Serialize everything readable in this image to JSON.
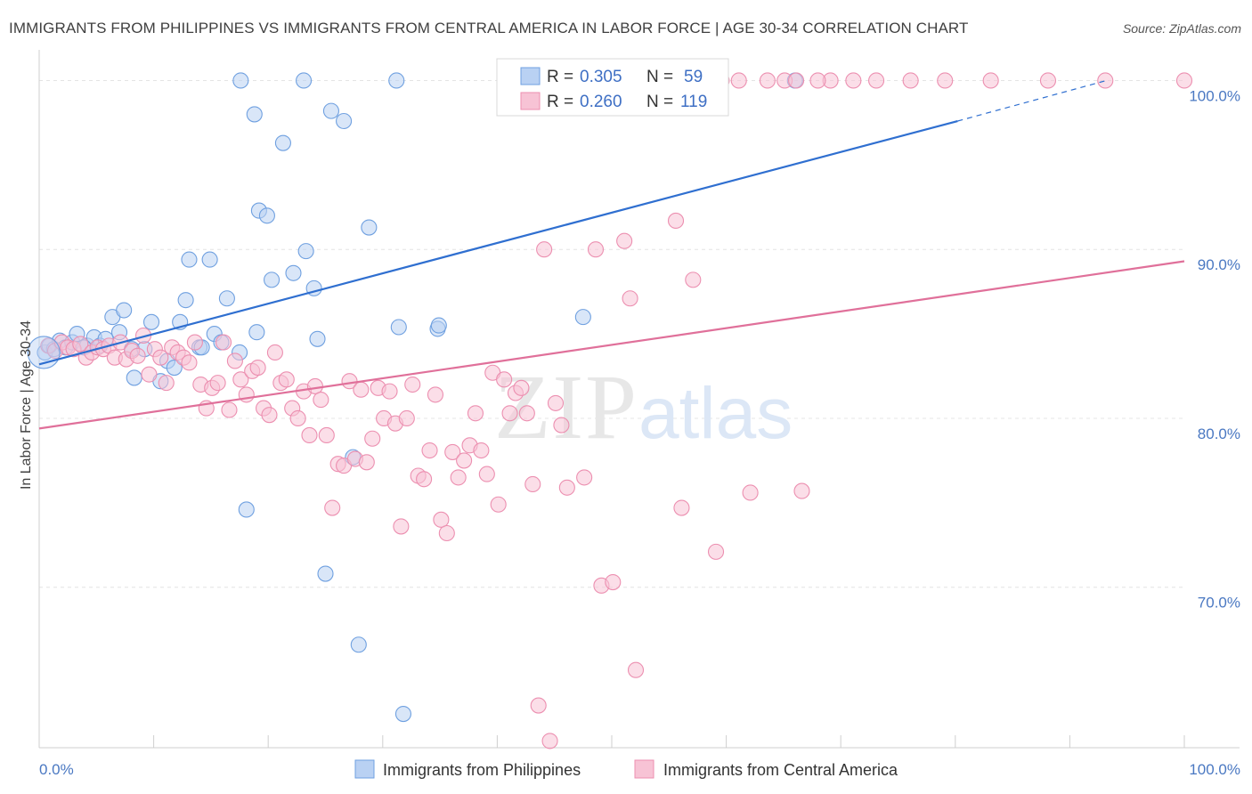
{
  "title": "IMMIGRANTS FROM PHILIPPINES VS IMMIGRANTS FROM CENTRAL AMERICA IN LABOR FORCE | AGE 30-34 CORRELATION CHART",
  "source": "Source: ZipAtlas.com",
  "watermark": {
    "zip": "ZIP",
    "atlas": "atlas"
  },
  "legend": {
    "r_label": "R =",
    "n_label": "N =",
    "rows": [
      {
        "r": "0.305",
        "n": "59"
      },
      {
        "r": "0.260",
        "n": "119"
      }
    ]
  },
  "chart_data": {
    "type": "scatter",
    "xlabel": "",
    "ylabel": "In Labor Force | Age 30-34",
    "xlim": [
      0,
      100
    ],
    "ylim": [
      60.5,
      101.5
    ],
    "x_tick_labels": [
      {
        "value": 0,
        "label": "0.0%"
      },
      {
        "value": 100,
        "label": "100.0%"
      }
    ],
    "y_tick_labels": [
      {
        "value": 100,
        "label": "100.0%"
      },
      {
        "value": 90,
        "label": "90.0%"
      },
      {
        "value": 80,
        "label": "80.0%"
      },
      {
        "value": 70,
        "label": "70.0%"
      }
    ],
    "grid": true,
    "legend_position": "top-center",
    "series": [
      {
        "name": "Immigrants from Philippines",
        "color": "#6fa0e0",
        "fill": "#b9d1f3",
        "trend_color": "#2f6fd0",
        "trend": {
          "x": [
            0,
            80.2
          ],
          "y": [
            83.2,
            97.6
          ],
          "dashed_to": [
            93.2,
            100.0
          ]
        },
        "points": [
          [
            0.5,
            83.9
          ],
          [
            0.9,
            84.3
          ],
          [
            1.3,
            84.1
          ],
          [
            1.8,
            84.6
          ],
          [
            2.3,
            84.2
          ],
          [
            2.9,
            84.5
          ],
          [
            3.3,
            85.0
          ],
          [
            4.2,
            84.3
          ],
          [
            4.8,
            84.8
          ],
          [
            5.3,
            84.3
          ],
          [
            6.4,
            86.0
          ],
          [
            7.0,
            85.1
          ],
          [
            7.4,
            86.4
          ],
          [
            8.1,
            84.1
          ],
          [
            8.3,
            82.4
          ],
          [
            9.2,
            84.1
          ],
          [
            9.8,
            85.7
          ],
          [
            10.6,
            82.2
          ],
          [
            11.2,
            83.4
          ],
          [
            11.8,
            83.0
          ],
          [
            12.3,
            85.7
          ],
          [
            12.8,
            87.0
          ],
          [
            13.1,
            89.4
          ],
          [
            14.0,
            84.2
          ],
          [
            14.2,
            84.2
          ],
          [
            14.9,
            89.4
          ],
          [
            15.3,
            85.0
          ],
          [
            15.9,
            84.5
          ],
          [
            16.4,
            87.1
          ],
          [
            17.5,
            83.9
          ],
          [
            17.6,
            100.0
          ],
          [
            18.1,
            74.6
          ],
          [
            18.8,
            98.0
          ],
          [
            19.0,
            85.1
          ],
          [
            19.2,
            92.3
          ],
          [
            19.9,
            92.0
          ],
          [
            20.3,
            88.2
          ],
          [
            21.3,
            96.3
          ],
          [
            22.2,
            88.6
          ],
          [
            23.1,
            100.0
          ],
          [
            23.3,
            89.9
          ],
          [
            24.0,
            87.7
          ],
          [
            24.3,
            84.7
          ],
          [
            25.0,
            70.8
          ],
          [
            25.5,
            98.2
          ],
          [
            26.6,
            97.6
          ],
          [
            27.4,
            77.7
          ],
          [
            27.9,
            66.6
          ],
          [
            28.8,
            91.3
          ],
          [
            31.2,
            100.0
          ],
          [
            31.4,
            85.4
          ],
          [
            31.8,
            62.5
          ],
          [
            34.8,
            85.3
          ],
          [
            34.9,
            85.5
          ],
          [
            47.0,
            100.0
          ],
          [
            47.5,
            86.0
          ],
          [
            66.0,
            100.0
          ],
          [
            3.9,
            84.2
          ],
          [
            5.8,
            84.7
          ]
        ]
      },
      {
        "name": "Immigrants from Central America",
        "color": "#ec8fb0",
        "fill": "#f7c3d5",
        "trend_color": "#e0709a",
        "trend": {
          "x": [
            0,
            100
          ],
          "y": [
            79.4,
            89.3
          ]
        },
        "points": [
          [
            0.8,
            84.3
          ],
          [
            1.4,
            84.0
          ],
          [
            2.0,
            84.5
          ],
          [
            2.5,
            84.2
          ],
          [
            3.0,
            84.1
          ],
          [
            3.6,
            84.4
          ],
          [
            4.1,
            83.6
          ],
          [
            4.6,
            83.9
          ],
          [
            5.1,
            84.2
          ],
          [
            5.6,
            84.1
          ],
          [
            6.1,
            84.3
          ],
          [
            6.6,
            83.6
          ],
          [
            7.1,
            84.5
          ],
          [
            7.6,
            83.5
          ],
          [
            8.1,
            84.0
          ],
          [
            8.6,
            83.7
          ],
          [
            9.1,
            84.9
          ],
          [
            9.6,
            82.6
          ],
          [
            10.1,
            84.1
          ],
          [
            10.6,
            83.6
          ],
          [
            11.1,
            82.1
          ],
          [
            11.6,
            84.2
          ],
          [
            12.1,
            83.9
          ],
          [
            12.6,
            83.6
          ],
          [
            13.1,
            83.3
          ],
          [
            13.6,
            84.5
          ],
          [
            14.1,
            82.0
          ],
          [
            14.6,
            80.6
          ],
          [
            15.1,
            81.8
          ],
          [
            15.6,
            82.1
          ],
          [
            16.1,
            84.5
          ],
          [
            16.6,
            80.5
          ],
          [
            17.1,
            83.4
          ],
          [
            17.6,
            82.3
          ],
          [
            18.1,
            81.4
          ],
          [
            18.6,
            82.8
          ],
          [
            19.1,
            83.0
          ],
          [
            19.6,
            80.6
          ],
          [
            20.1,
            80.2
          ],
          [
            20.6,
            83.9
          ],
          [
            21.1,
            82.1
          ],
          [
            21.6,
            82.3
          ],
          [
            22.1,
            80.6
          ],
          [
            22.6,
            80.0
          ],
          [
            23.1,
            81.6
          ],
          [
            23.6,
            79.0
          ],
          [
            24.1,
            81.9
          ],
          [
            24.6,
            81.1
          ],
          [
            25.1,
            79.0
          ],
          [
            25.6,
            74.7
          ],
          [
            26.1,
            77.3
          ],
          [
            26.6,
            77.2
          ],
          [
            27.1,
            82.2
          ],
          [
            27.6,
            77.6
          ],
          [
            28.1,
            81.7
          ],
          [
            28.6,
            77.4
          ],
          [
            29.1,
            78.8
          ],
          [
            29.6,
            81.8
          ],
          [
            30.1,
            80.0
          ],
          [
            30.6,
            81.6
          ],
          [
            31.1,
            79.7
          ],
          [
            31.6,
            73.6
          ],
          [
            32.1,
            80.0
          ],
          [
            32.6,
            82.0
          ],
          [
            33.1,
            76.6
          ],
          [
            33.6,
            76.4
          ],
          [
            34.1,
            78.1
          ],
          [
            34.6,
            81.4
          ],
          [
            35.1,
            74.0
          ],
          [
            35.6,
            73.2
          ],
          [
            36.1,
            78.0
          ],
          [
            36.6,
            76.5
          ],
          [
            37.1,
            77.5
          ],
          [
            37.6,
            78.4
          ],
          [
            38.1,
            80.3
          ],
          [
            38.6,
            78.1
          ],
          [
            39.1,
            76.7
          ],
          [
            39.6,
            82.7
          ],
          [
            40.1,
            74.9
          ],
          [
            40.6,
            82.3
          ],
          [
            41.1,
            80.3
          ],
          [
            41.6,
            81.5
          ],
          [
            42.1,
            81.8
          ],
          [
            42.6,
            80.3
          ],
          [
            43.1,
            76.1
          ],
          [
            43.6,
            63.0
          ],
          [
            44.1,
            90.0
          ],
          [
            44.6,
            60.9
          ],
          [
            45.1,
            80.9
          ],
          [
            45.6,
            79.6
          ],
          [
            46.1,
            75.9
          ],
          [
            47.6,
            76.5
          ],
          [
            48.6,
            90.0
          ],
          [
            49.1,
            70.1
          ],
          [
            50.1,
            70.3
          ],
          [
            51.1,
            90.5
          ],
          [
            51.6,
            87.1
          ],
          [
            52.1,
            65.1
          ],
          [
            54.1,
            100.0
          ],
          [
            55.6,
            91.7
          ],
          [
            56.1,
            74.7
          ],
          [
            56.6,
            100.0
          ],
          [
            57.1,
            88.2
          ],
          [
            58.1,
            100.0
          ],
          [
            59.1,
            72.1
          ],
          [
            59.6,
            100.0
          ],
          [
            61.1,
            100.0
          ],
          [
            62.1,
            75.6
          ],
          [
            63.6,
            100.0
          ],
          [
            65.1,
            100.0
          ],
          [
            66.1,
            100.0
          ],
          [
            66.6,
            75.7
          ],
          [
            69.1,
            100.0
          ],
          [
            71.1,
            100.0
          ],
          [
            73.1,
            100.0
          ],
          [
            76.1,
            100.0
          ],
          [
            79.1,
            100.0
          ],
          [
            83.1,
            100.0
          ],
          [
            88.1,
            100.0
          ],
          [
            93.1,
            100.0
          ],
          [
            100.0,
            100.0
          ],
          [
            41.5,
            100.0
          ],
          [
            51.0,
            100.0
          ],
          [
            55.0,
            100.0
          ],
          [
            68.0,
            100.0
          ]
        ]
      }
    ]
  }
}
